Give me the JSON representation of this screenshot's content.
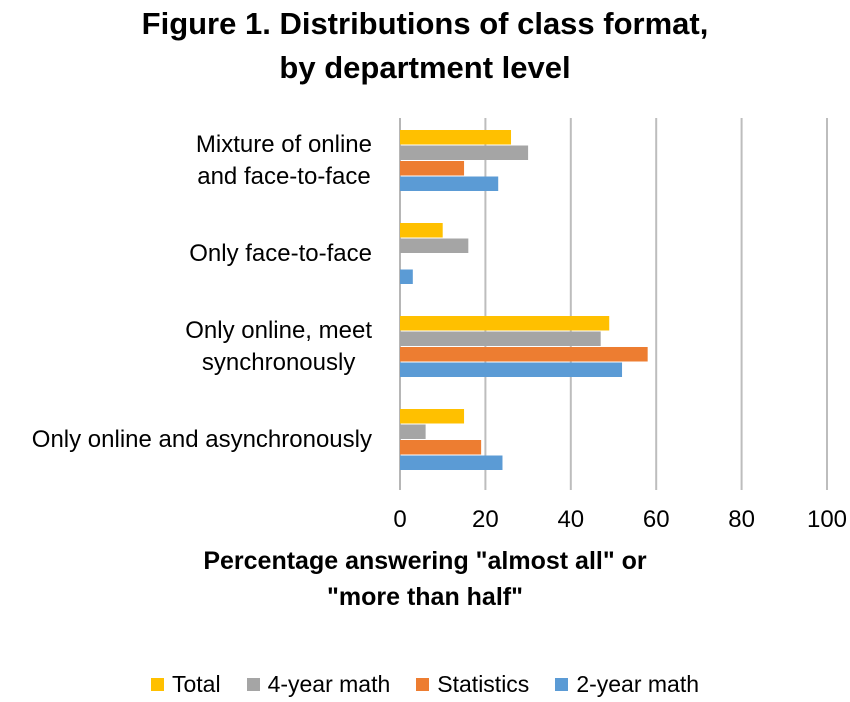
{
  "chart_data": {
    "type": "bar",
    "orientation": "horizontal",
    "title_lines": [
      "Figure 1. Distributions of class format,",
      "by department level"
    ],
    "xlabel_lines": [
      "Percentage answering \"almost all\" or",
      "\"more than half\""
    ],
    "ylabel": "",
    "categories": [
      {
        "lines": [
          "Mixture of online",
          "and face-to-face"
        ]
      },
      {
        "lines": [
          "Only face-to-face"
        ]
      },
      {
        "lines": [
          "Only online, meet",
          "synchronously"
        ]
      },
      {
        "lines": [
          "Only online and  asynchronously"
        ]
      }
    ],
    "series": [
      {
        "name": "Total",
        "color": "#FFC000",
        "values": [
          26,
          10,
          49,
          15
        ]
      },
      {
        "name": "4-year math",
        "color": "#A5A5A5",
        "values": [
          30,
          16,
          47,
          6
        ]
      },
      {
        "name": "Statistics",
        "color": "#ED7D31",
        "values": [
          15,
          0,
          58,
          19
        ]
      },
      {
        "name": "2-year math",
        "color": "#5B9BD5",
        "values": [
          23,
          3,
          52,
          24
        ]
      }
    ],
    "xlim": [
      0,
      100
    ],
    "xticks": [
      "0",
      "20",
      "40",
      "60",
      "80",
      "100"
    ],
    "grid": true,
    "legend_position": "bottom"
  }
}
